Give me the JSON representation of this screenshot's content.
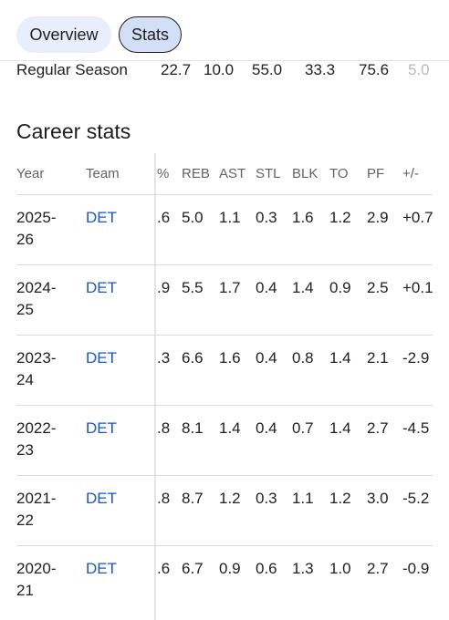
{
  "tabs": [
    "Overview",
    "Stats"
  ],
  "regular_season": {
    "label": "Regular Season",
    "values": [
      "22.7",
      "10.0",
      "55.0",
      "33.3",
      "75.6",
      "5.0"
    ]
  },
  "career_stats": {
    "title": "Career stats",
    "columns": [
      "Year",
      "Team",
      "%",
      "REB",
      "AST",
      "STL",
      "BLK",
      "TO",
      "PF",
      "+/-"
    ],
    "rows": [
      [
        "2025-26",
        "DET",
        ".6",
        "5.0",
        "1.1",
        "0.3",
        "1.6",
        "1.2",
        "2.9",
        "+0.7"
      ],
      [
        "2024-25",
        "DET",
        ".9",
        "5.5",
        "1.7",
        "0.4",
        "1.4",
        "0.9",
        "2.5",
        "+0.1"
      ],
      [
        "2023-24",
        "DET",
        ".3",
        "6.6",
        "1.6",
        "0.4",
        "0.8",
        "1.4",
        "2.1",
        "-2.9"
      ],
      [
        "2022-23",
        "DET",
        ".8",
        "8.1",
        "1.4",
        "0.4",
        "0.7",
        "1.4",
        "2.7",
        "-4.5"
      ],
      [
        "2021-22",
        "DET",
        ".8",
        "8.7",
        "1.2",
        "0.3",
        "1.1",
        "1.2",
        "3.0",
        "-5.2"
      ],
      [
        "2020-21",
        "DET",
        ".6",
        "6.7",
        "0.9",
        "0.6",
        "1.3",
        "1.0",
        "2.7",
        "-0.9"
      ]
    ]
  }
}
